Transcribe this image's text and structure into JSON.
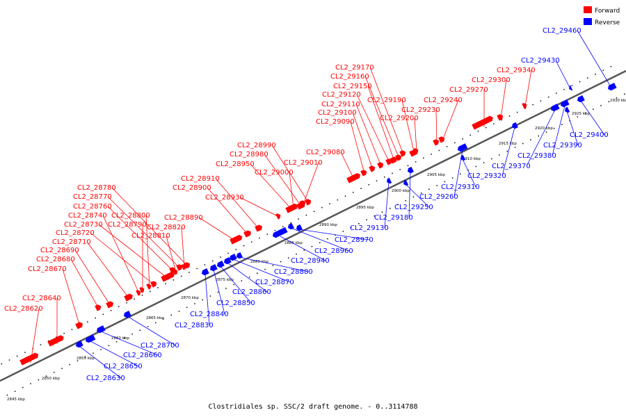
{
  "caption": "Clostridiales sp. SSC/2 draft genome. - 0..3114788",
  "legend": {
    "forward": {
      "label": "Forward",
      "color": "#ff0000"
    },
    "reverse": {
      "label": "Reverse",
      "color": "#0000ff"
    }
  },
  "colors": {
    "forward": "#ff0000",
    "reverse": "#0000ff",
    "backbone": "#555555",
    "tick": "#000000"
  },
  "ticks": [
    {
      "kbp": 2845,
      "label": "2845 kbp"
    },
    {
      "kbp": 2850,
      "label": "2850 kbp"
    },
    {
      "kbp": 2855,
      "label": "2855 kbp"
    },
    {
      "kbp": 2860,
      "label": "2860 kbp"
    },
    {
      "kbp": 2865,
      "label": "2865 kbp"
    },
    {
      "kbp": 2870,
      "label": "2870 kbp"
    },
    {
      "kbp": 2875,
      "label": "2875 kbp"
    },
    {
      "kbp": 2880,
      "label": "2880 kbp"
    },
    {
      "kbp": 2885,
      "label": "2885 kbp"
    },
    {
      "kbp": 2890,
      "label": "2890 kbp"
    },
    {
      "kbp": 2895,
      "label": "2895 kbp"
    },
    {
      "kbp": 2900,
      "label": "2900 kbp"
    },
    {
      "kbp": 2905,
      "label": "2905 kbp"
    },
    {
      "kbp": 2910,
      "label": "2910 kbp"
    },
    {
      "kbp": 2915,
      "label": "2915 kbp"
    },
    {
      "kbp": 2920,
      "label": "2920 kbp"
    },
    {
      "kbp": 2925,
      "label": "2925 kbp"
    },
    {
      "kbp": 2930,
      "label": "2930 kbp"
    }
  ],
  "genes": [
    {
      "name": "CL2_28620",
      "strand": "forward"
    },
    {
      "name": "CL2_28630",
      "strand": "reverse"
    },
    {
      "name": "CL2_28640",
      "strand": "forward"
    },
    {
      "name": "CL2_28650",
      "strand": "reverse"
    },
    {
      "name": "CL2_28660",
      "strand": "reverse"
    },
    {
      "name": "CL2_28670",
      "strand": "forward"
    },
    {
      "name": "CL2_28680",
      "strand": "forward"
    },
    {
      "name": "CL2_28690",
      "strand": "forward"
    },
    {
      "name": "CL2_28700",
      "strand": "reverse"
    },
    {
      "name": "CL2_28710",
      "strand": "forward"
    },
    {
      "name": "CL2_28720",
      "strand": "forward"
    },
    {
      "name": "CL2_28730",
      "strand": "forward"
    },
    {
      "name": "CL2_28740",
      "strand": "forward"
    },
    {
      "name": "CL2_28760",
      "strand": "forward"
    },
    {
      "name": "CL2_28770",
      "strand": "forward"
    },
    {
      "name": "CL2_28780",
      "strand": "forward"
    },
    {
      "name": "CL2_28790",
      "strand": "forward"
    },
    {
      "name": "CL2_28800",
      "strand": "forward"
    },
    {
      "name": "CL2_28810",
      "strand": "forward"
    },
    {
      "name": "CL2_28820",
      "strand": "forward"
    },
    {
      "name": "CL2_28830",
      "strand": "reverse"
    },
    {
      "name": "CL2_28840",
      "strand": "reverse"
    },
    {
      "name": "CL2_28850",
      "strand": "reverse"
    },
    {
      "name": "CL2_28860",
      "strand": "reverse"
    },
    {
      "name": "CL2_28870",
      "strand": "reverse"
    },
    {
      "name": "CL2_28880",
      "strand": "reverse"
    },
    {
      "name": "CL2_28890",
      "strand": "forward"
    },
    {
      "name": "CL2_28900",
      "strand": "forward"
    },
    {
      "name": "CL2_28910",
      "strand": "forward"
    },
    {
      "name": "CL2_28930",
      "strand": "forward"
    },
    {
      "name": "CL2_28940",
      "strand": "reverse"
    },
    {
      "name": "CL2_28950",
      "strand": "forward"
    },
    {
      "name": "CL2_28960",
      "strand": "reverse"
    },
    {
      "name": "CL2_28970",
      "strand": "reverse"
    },
    {
      "name": "CL2_28980",
      "strand": "forward"
    },
    {
      "name": "CL2_28990",
      "strand": "forward"
    },
    {
      "name": "CL2_29000",
      "strand": "forward"
    },
    {
      "name": "CL2_29010",
      "strand": "forward"
    },
    {
      "name": "CL2_29080",
      "strand": "forward"
    },
    {
      "name": "CL2_29090",
      "strand": "forward"
    },
    {
      "name": "CL2_29100",
      "strand": "forward"
    },
    {
      "name": "CL2_29110",
      "strand": "forward"
    },
    {
      "name": "CL2_29120",
      "strand": "forward"
    },
    {
      "name": "CL2_29130",
      "strand": "reverse"
    },
    {
      "name": "CL2_29150",
      "strand": "forward"
    },
    {
      "name": "CL2_29160",
      "strand": "forward"
    },
    {
      "name": "CL2_29170",
      "strand": "forward"
    },
    {
      "name": "CL2_29180",
      "strand": "reverse"
    },
    {
      "name": "CL2_29190",
      "strand": "forward"
    },
    {
      "name": "CL2_29200",
      "strand": "forward"
    },
    {
      "name": "CL2_29230",
      "strand": "forward"
    },
    {
      "name": "CL2_29240",
      "strand": "forward"
    },
    {
      "name": "CL2_29250",
      "strand": "reverse"
    },
    {
      "name": "CL2_29260",
      "strand": "reverse"
    },
    {
      "name": "CL2_29270",
      "strand": "forward"
    },
    {
      "name": "CL2_29300",
      "strand": "forward"
    },
    {
      "name": "CL2_29310",
      "strand": "reverse"
    },
    {
      "name": "CL2_29320",
      "strand": "reverse"
    },
    {
      "name": "CL2_29340",
      "strand": "forward"
    },
    {
      "name": "CL2_29370",
      "strand": "reverse"
    },
    {
      "name": "CL2_29380",
      "strand": "reverse"
    },
    {
      "name": "CL2_29390",
      "strand": "reverse"
    },
    {
      "name": "CL2_29400",
      "strand": "reverse"
    },
    {
      "name": "CL2_29430",
      "strand": "reverse"
    },
    {
      "name": "CL2_29460",
      "strand": "reverse"
    }
  ]
}
